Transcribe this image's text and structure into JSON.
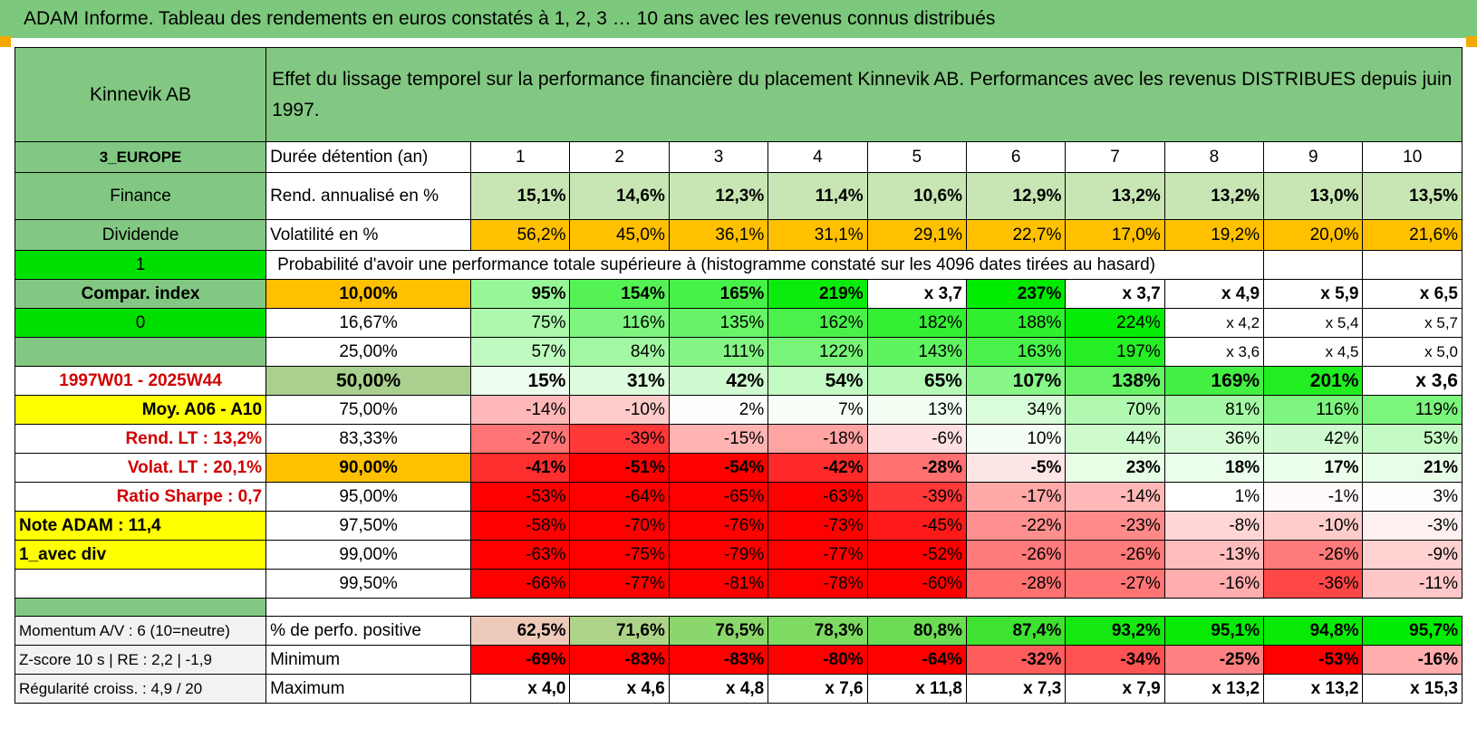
{
  "title": "ADAM Informe. Tableau des rendements en euros constatés à 1, 2, 3 … 10 ans avec les revenus connus distribués",
  "colors": {
    "header_green": "#82c882",
    "bright_green": "#00e000",
    "orange": "#ffc000",
    "yellow": "#ffff00",
    "label_red": "#d00000"
  },
  "header": {
    "company": "Kinnevik AB",
    "description": "Effet du lissage temporel sur la performance financière du placement Kinnevik AB. Performances avec les revenus DISTRIBUES depuis juin 1997."
  },
  "years_row": {
    "side": "3_EUROPE",
    "label": "Durée détention (an)",
    "values": [
      "1",
      "2",
      "3",
      "4",
      "5",
      "6",
      "7",
      "8",
      "9",
      "10"
    ]
  },
  "rendement_row": {
    "side": "Finance",
    "label": "Rend. annualisé en %",
    "values": [
      "15,1%",
      "14,6%",
      "12,3%",
      "11,4%",
      "10,6%",
      "12,9%",
      "13,2%",
      "13,2%",
      "13,0%",
      "13,5%"
    ]
  },
  "volatility_row": {
    "side": "Dividende",
    "label": "Volatilité en %",
    "values": [
      "56,2%",
      "45,0%",
      "36,1%",
      "31,1%",
      "29,1%",
      "22,7%",
      "17,0%",
      "19,2%",
      "20,0%",
      "21,6%"
    ]
  },
  "probability": {
    "side": "1",
    "caption": "Probabilité d'avoir une performance totale supérieure à (histogramme constaté sur les 4096 dates tirées au hasard)"
  },
  "prob_rows": [
    {
      "side": "Compar. index",
      "pct": "10,00%",
      "values": [
        "95%",
        "154%",
        "165%",
        "219%",
        "x 3,7",
        "237%",
        "x 3,7",
        "x 4,9",
        "x 5,9",
        "x 6,5"
      ]
    },
    {
      "side": "0",
      "pct": "16,67%",
      "values": [
        "75%",
        "116%",
        "135%",
        "162%",
        "182%",
        "188%",
        "224%",
        "x 4,2",
        "x 5,4",
        "x 5,7"
      ]
    },
    {
      "side": "",
      "pct": "25,00%",
      "values": [
        "57%",
        "84%",
        "111%",
        "122%",
        "143%",
        "163%",
        "197%",
        "x 3,6",
        "x 4,5",
        "x 5,0"
      ]
    },
    {
      "side": "1997W01 - 2025W44",
      "pct": "50,00%",
      "values": [
        "15%",
        "31%",
        "42%",
        "54%",
        "65%",
        "107%",
        "138%",
        "169%",
        "201%",
        "x 3,6"
      ]
    },
    {
      "side": "Moy. A06 - A10",
      "pct": "75,00%",
      "values": [
        "-14%",
        "-10%",
        "2%",
        "7%",
        "13%",
        "34%",
        "70%",
        "81%",
        "116%",
        "119%"
      ]
    },
    {
      "side": "Rend. LT :    13,2%",
      "pct": "83,33%",
      "values": [
        "-27%",
        "-39%",
        "-15%",
        "-18%",
        "-6%",
        "10%",
        "44%",
        "36%",
        "42%",
        "53%"
      ]
    },
    {
      "side": "Volat. LT :    20,1%",
      "pct": "90,00%",
      "values": [
        "-41%",
        "-51%",
        "-54%",
        "-42%",
        "-28%",
        "-5%",
        "23%",
        "18%",
        "17%",
        "21%"
      ]
    },
    {
      "side": "Ratio Sharpe :    0,7",
      "pct": "95,00%",
      "values": [
        "-53%",
        "-64%",
        "-65%",
        "-63%",
        "-39%",
        "-17%",
        "-14%",
        "1%",
        "-1%",
        "3%"
      ]
    },
    {
      "side": "Note ADAM : 11,4",
      "pct": "97,50%",
      "values": [
        "-58%",
        "-70%",
        "-76%",
        "-73%",
        "-45%",
        "-22%",
        "-23%",
        "-8%",
        "-10%",
        "-3%"
      ]
    },
    {
      "side": "1_avec div",
      "pct": "99,00%",
      "values": [
        "-63%",
        "-75%",
        "-79%",
        "-77%",
        "-52%",
        "-26%",
        "-26%",
        "-13%",
        "-26%",
        "-9%"
      ]
    },
    {
      "side": "",
      "pct": "99,50%",
      "values": [
        "-66%",
        "-77%",
        "-81%",
        "-78%",
        "-60%",
        "-28%",
        "-27%",
        "-16%",
        "-36%",
        "-11%"
      ]
    }
  ],
  "summary_rows": [
    {
      "side": "Momentum A/V : 6 (10=neutre)",
      "label": "% de perfo. positive",
      "values": [
        "62,5%",
        "71,6%",
        "76,5%",
        "78,3%",
        "80,8%",
        "87,4%",
        "93,2%",
        "95,1%",
        "94,8%",
        "95,7%"
      ]
    },
    {
      "side": "Z-score 10 s | RE : 2,2 | -1,9",
      "label": "Minimum",
      "values": [
        "-69%",
        "-83%",
        "-83%",
        "-80%",
        "-64%",
        "-32%",
        "-34%",
        "-25%",
        "-53%",
        "-16%"
      ]
    },
    {
      "side": "Régularité croiss. : 4,9 / 20",
      "label": "Maximum",
      "values": [
        "x 4,0",
        "x 4,6",
        "x 4,8",
        "x 7,6",
        "x 11,8",
        "x 7,3",
        "x 7,9",
        "x 13,2",
        "x 13,2",
        "x 15,3"
      ]
    }
  ]
}
